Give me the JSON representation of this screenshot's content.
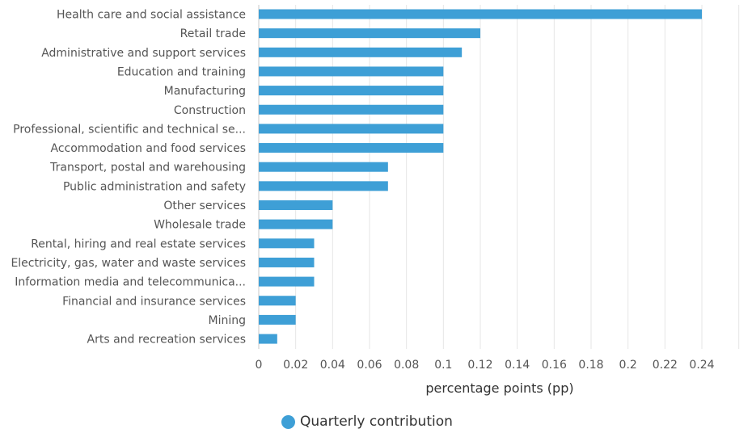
{
  "chart_data": {
    "type": "bar",
    "orientation": "horizontal",
    "categories": [
      "Health care and social assistance",
      "Retail trade",
      "Administrative and support services",
      "Education and training",
      "Manufacturing",
      "Construction",
      "Professional, scientific and technical se...",
      "Accommodation and food services",
      "Transport, postal and warehousing",
      "Public administration and safety",
      "Other services",
      "Wholesale trade",
      "Rental, hiring and real estate services",
      "Electricity, gas, water and waste services",
      "Information media and telecommunica...",
      "Financial and insurance services",
      "Mining",
      "Arts and recreation services"
    ],
    "series": [
      {
        "name": "Quarterly contribution",
        "values": [
          0.24,
          0.12,
          0.11,
          0.1,
          0.1,
          0.1,
          0.1,
          0.1,
          0.07,
          0.07,
          0.04,
          0.04,
          0.03,
          0.03,
          0.03,
          0.02,
          0.02,
          0.01
        ]
      }
    ],
    "xlabel": "percentage points (pp)",
    "ylabel": "",
    "xlim": [
      0,
      0.26
    ],
    "xticks": [
      "0",
      "0.02",
      "0.04",
      "0.06",
      "0.08",
      "0.1",
      "0.12",
      "0.14",
      "0.16",
      "0.18",
      "0.2",
      "0.22",
      "0.24"
    ],
    "xtick_values": [
      0,
      0.02,
      0.04,
      0.06,
      0.08,
      0.1,
      0.12,
      0.14,
      0.16,
      0.18,
      0.2,
      0.22,
      0.24
    ],
    "grid": true,
    "legend_position": "bottom-center",
    "color": "#3e9fd6"
  }
}
